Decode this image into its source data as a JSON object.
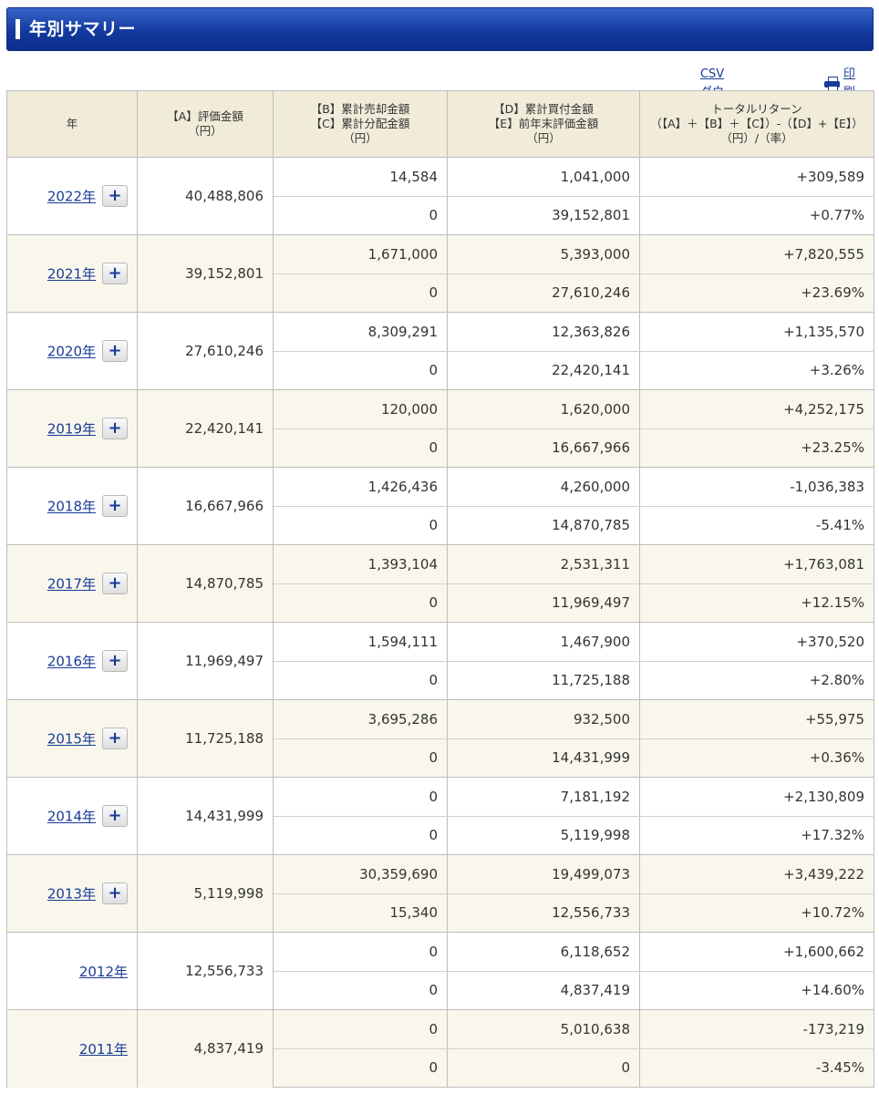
{
  "title": "年別サマリー",
  "tools": {
    "csv_label": "CSVダウンロード",
    "print_label": "印刷"
  },
  "columns": {
    "year": "年",
    "a": [
      "【A】評価金額",
      "（円）"
    ],
    "bc": [
      "【B】累計売却金額",
      "【C】累計分配金額",
      "（円）"
    ],
    "de": [
      "【D】累計買付金額",
      "【E】前年末評価金額",
      "（円）"
    ],
    "tr": [
      "トータルリターン",
      "（【A】＋【B】＋【C】）-（【D】+【E】）",
      "（円）/（率）"
    ]
  },
  "expand_symbol": "+",
  "rows": [
    {
      "year": "2022年",
      "expand": true,
      "a": "40,488,806",
      "b": "14,584",
      "c": "0",
      "d": "1,041,000",
      "e": "39,152,801",
      "tr_amount": "+309,589",
      "tr_rate": "+0.77%",
      "sign": "pos"
    },
    {
      "year": "2021年",
      "expand": true,
      "a": "39,152,801",
      "b": "1,671,000",
      "c": "0",
      "d": "5,393,000",
      "e": "27,610,246",
      "tr_amount": "+7,820,555",
      "tr_rate": "+23.69%",
      "sign": "pos"
    },
    {
      "year": "2020年",
      "expand": true,
      "a": "27,610,246",
      "b": "8,309,291",
      "c": "0",
      "d": "12,363,826",
      "e": "22,420,141",
      "tr_amount": "+1,135,570",
      "tr_rate": "+3.26%",
      "sign": "pos"
    },
    {
      "year": "2019年",
      "expand": true,
      "a": "22,420,141",
      "b": "120,000",
      "c": "0",
      "d": "1,620,000",
      "e": "16,667,966",
      "tr_amount": "+4,252,175",
      "tr_rate": "+23.25%",
      "sign": "pos"
    },
    {
      "year": "2018年",
      "expand": true,
      "a": "16,667,966",
      "b": "1,426,436",
      "c": "0",
      "d": "4,260,000",
      "e": "14,870,785",
      "tr_amount": "-1,036,383",
      "tr_rate": "-5.41%",
      "sign": "neg"
    },
    {
      "year": "2017年",
      "expand": true,
      "a": "14,870,785",
      "b": "1,393,104",
      "c": "0",
      "d": "2,531,311",
      "e": "11,969,497",
      "tr_amount": "+1,763,081",
      "tr_rate": "+12.15%",
      "sign": "pos"
    },
    {
      "year": "2016年",
      "expand": true,
      "a": "11,969,497",
      "b": "1,594,111",
      "c": "0",
      "d": "1,467,900",
      "e": "11,725,188",
      "tr_amount": "+370,520",
      "tr_rate": "+2.80%",
      "sign": "pos"
    },
    {
      "year": "2015年",
      "expand": true,
      "a": "11,725,188",
      "b": "3,695,286",
      "c": "0",
      "d": "932,500",
      "e": "14,431,999",
      "tr_amount": "+55,975",
      "tr_rate": "+0.36%",
      "sign": "pos"
    },
    {
      "year": "2014年",
      "expand": true,
      "a": "14,431,999",
      "b": "0",
      "c": "0",
      "d": "7,181,192",
      "e": "5,119,998",
      "tr_amount": "+2,130,809",
      "tr_rate": "+17.32%",
      "sign": "pos"
    },
    {
      "year": "2013年",
      "expand": true,
      "a": "5,119,998",
      "b": "30,359,690",
      "c": "15,340",
      "d": "19,499,073",
      "e": "12,556,733",
      "tr_amount": "+3,439,222",
      "tr_rate": "+10.72%",
      "sign": "pos"
    },
    {
      "year": "2012年",
      "expand": false,
      "a": "12,556,733",
      "b": "0",
      "c": "0",
      "d": "6,118,652",
      "e": "4,837,419",
      "tr_amount": "+1,600,662",
      "tr_rate": "+14.60%",
      "sign": "pos"
    },
    {
      "year": "2011年",
      "expand": false,
      "a": "4,837,419",
      "b": "0",
      "c": "0",
      "d": "5,010,638",
      "e": "0",
      "tr_amount": "-173,219",
      "tr_rate": "-3.45%",
      "sign": "neg"
    }
  ],
  "colors": {
    "header_blue": "#13399f",
    "link": "#1a3b98",
    "positive": "#e8121d",
    "negative": "#2a2adf",
    "header_bg": "#f0ecd9",
    "alt_row_bg": "#f9f7ec"
  }
}
